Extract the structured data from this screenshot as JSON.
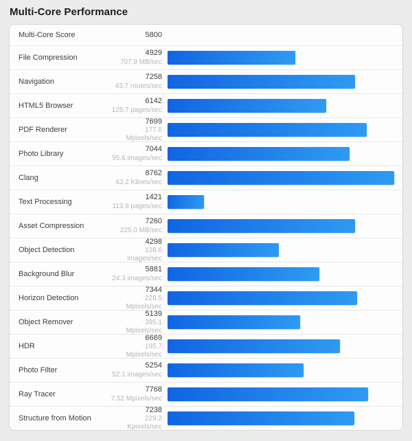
{
  "title": "Multi-Core Performance",
  "colors": {
    "page_bg": "#ececec",
    "panel_bg": "#fdfdfd",
    "panel_border": "#d7d7d7",
    "row_border": "#e7e7e7",
    "text": "#3d3d3d",
    "muted_text": "#b6b6b6",
    "bar_gradient_start": "#1164e2",
    "bar_gradient_end": "#2e9bf2"
  },
  "rows": [
    {
      "name": "Multi-Core Score",
      "score": "5800",
      "rate": "",
      "value": 5800,
      "bar": false
    },
    {
      "name": "File Compression",
      "score": "4929",
      "rate": "707.9 MB/sec",
      "value": 4929,
      "bar": true
    },
    {
      "name": "Navigation",
      "score": "7258",
      "rate": "43.7 routes/sec",
      "value": 7258,
      "bar": true
    },
    {
      "name": "HTML5 Browser",
      "score": "6142",
      "rate": "125.7 pages/sec",
      "value": 6142,
      "bar": true
    },
    {
      "name": "PDF Renderer",
      "score": "7699",
      "rate": "177.6 Mpixels/sec",
      "value": 7699,
      "bar": true
    },
    {
      "name": "Photo Library",
      "score": "7044",
      "rate": "95.6 images/sec",
      "value": 7044,
      "bar": true
    },
    {
      "name": "Clang",
      "score": "8762",
      "rate": "43.2 Klines/sec",
      "value": 8762,
      "bar": true
    },
    {
      "name": "Text Processing",
      "score": "1421",
      "rate": "113.8 pages/sec",
      "value": 1421,
      "bar": true
    },
    {
      "name": "Asset Compression",
      "score": "7260",
      "rate": "225.0 MB/sec",
      "value": 7260,
      "bar": true
    },
    {
      "name": "Object Detection",
      "score": "4298",
      "rate": "128.6 images/sec",
      "value": 4298,
      "bar": true
    },
    {
      "name": "Background Blur",
      "score": "5881",
      "rate": "24.3 images/sec",
      "value": 5881,
      "bar": true
    },
    {
      "name": "Horizon Detection",
      "score": "7344",
      "rate": "228.5 Mpixels/sec",
      "value": 7344,
      "bar": true
    },
    {
      "name": "Object Remover",
      "score": "5139",
      "rate": "395.1 Mpixels/sec",
      "value": 5139,
      "bar": true
    },
    {
      "name": "HDR",
      "score": "6669",
      "rate": "195.7 Mpixels/sec",
      "value": 6669,
      "bar": true
    },
    {
      "name": "Photo Filter",
      "score": "5254",
      "rate": "52.1 images/sec",
      "value": 5254,
      "bar": true
    },
    {
      "name": "Ray Tracer",
      "score": "7768",
      "rate": "7.52 Mpixels/sec",
      "value": 7768,
      "bar": true
    },
    {
      "name": "Structure from Motion",
      "score": "7238",
      "rate": "229.2 Kpixels/sec",
      "value": 7238,
      "bar": true
    }
  ],
  "chart_data": {
    "type": "bar",
    "orientation": "horizontal",
    "title": "Multi-Core Performance",
    "overall_score": 5800,
    "categories": [
      "File Compression",
      "Navigation",
      "HTML5 Browser",
      "PDF Renderer",
      "Photo Library",
      "Clang",
      "Text Processing",
      "Asset Compression",
      "Object Detection",
      "Background Blur",
      "Horizon Detection",
      "Object Remover",
      "HDR",
      "Photo Filter",
      "Ray Tracer",
      "Structure from Motion"
    ],
    "values": [
      4929,
      7258,
      6142,
      7699,
      7044,
      8762,
      1421,
      7260,
      4298,
      5881,
      7344,
      5139,
      6669,
      5254,
      7768,
      7238
    ],
    "rate_labels": [
      "707.9 MB/sec",
      "43.7 routes/sec",
      "125.7 pages/sec",
      "177.6 Mpixels/sec",
      "95.6 images/sec",
      "43.2 Klines/sec",
      "113.8 pages/sec",
      "225.0 MB/sec",
      "128.6 images/sec",
      "24.3 images/sec",
      "228.5 Mpixels/sec",
      "395.1 Mpixels/sec",
      "195.7 Mpixels/sec",
      "52.1 images/sec",
      "7.52 Mpixels/sec",
      "229.2 Kpixels/sec"
    ],
    "xlim": [
      0,
      8900
    ],
    "grid": false,
    "legend": "none",
    "xlabel": "",
    "ylabel": ""
  }
}
